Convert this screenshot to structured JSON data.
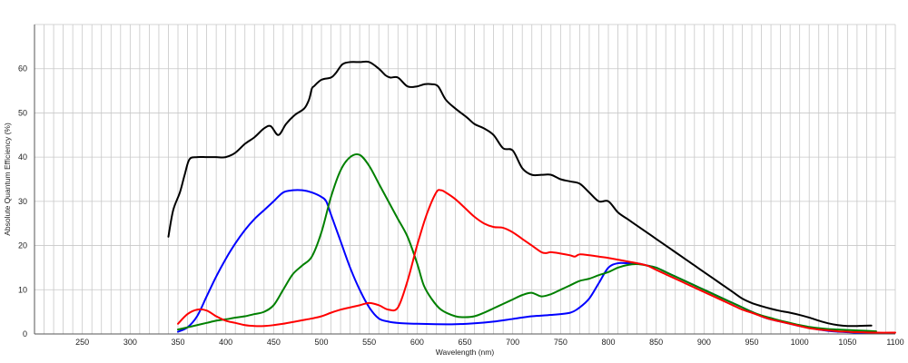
{
  "chart_data": {
    "type": "line",
    "title": "",
    "xlabel": "Wavelength (nm)",
    "ylabel": "Absolute Quantum Efficiency (%)",
    "xlim": [
      200,
      1100
    ],
    "ylim": [
      0,
      70
    ],
    "x_ticks": [
      250,
      300,
      350,
      400,
      450,
      500,
      550,
      600,
      650,
      700,
      750,
      800,
      850,
      900,
      950,
      1000,
      1050,
      1100
    ],
    "y_ticks": [
      0,
      10,
      20,
      30,
      40,
      50,
      60
    ],
    "grid": {
      "x_minor_step": 10,
      "y_step": 10
    },
    "legend": "none",
    "series": [
      {
        "color": "#000000",
        "points": [
          [
            340,
            22
          ],
          [
            345,
            28
          ],
          [
            352,
            32
          ],
          [
            357,
            36
          ],
          [
            362,
            39.5
          ],
          [
            370,
            40
          ],
          [
            380,
            40
          ],
          [
            390,
            40
          ],
          [
            400,
            40
          ],
          [
            410,
            41
          ],
          [
            420,
            43
          ],
          [
            430,
            44.5
          ],
          [
            440,
            46.5
          ],
          [
            447,
            47
          ],
          [
            455,
            45
          ],
          [
            463,
            47.5
          ],
          [
            472,
            49.5
          ],
          [
            482,
            51
          ],
          [
            487,
            53
          ],
          [
            490,
            55.5
          ],
          [
            492,
            56
          ],
          [
            500,
            57.5
          ],
          [
            510,
            58
          ],
          [
            515,
            59
          ],
          [
            522,
            61
          ],
          [
            530,
            61.5
          ],
          [
            540,
            61.5
          ],
          [
            550,
            61.5
          ],
          [
            560,
            60
          ],
          [
            567,
            58.5
          ],
          [
            572,
            58
          ],
          [
            580,
            58
          ],
          [
            590,
            56
          ],
          [
            600,
            56
          ],
          [
            608,
            56.5
          ],
          [
            615,
            56.5
          ],
          [
            622,
            56
          ],
          [
            630,
            53
          ],
          [
            640,
            51
          ],
          [
            652,
            49
          ],
          [
            660,
            47.5
          ],
          [
            670,
            46.5
          ],
          [
            680,
            45
          ],
          [
            690,
            42
          ],
          [
            700,
            41.5
          ],
          [
            710,
            37.5
          ],
          [
            720,
            36
          ],
          [
            730,
            36
          ],
          [
            740,
            36
          ],
          [
            750,
            35
          ],
          [
            760,
            34.5
          ],
          [
            770,
            34
          ],
          [
            780,
            32
          ],
          [
            790,
            30
          ],
          [
            800,
            30
          ],
          [
            810,
            27.5
          ],
          [
            820,
            26
          ],
          [
            830,
            24.5
          ],
          [
            840,
            23
          ],
          [
            850,
            21.5
          ],
          [
            860,
            20
          ],
          [
            870,
            18.5
          ],
          [
            880,
            17
          ],
          [
            890,
            15.5
          ],
          [
            900,
            14
          ],
          [
            910,
            12.5
          ],
          [
            920,
            11
          ],
          [
            930,
            9.5
          ],
          [
            940,
            8
          ],
          [
            950,
            7
          ],
          [
            960,
            6.3
          ],
          [
            970,
            5.7
          ],
          [
            980,
            5.2
          ],
          [
            990,
            4.8
          ],
          [
            1000,
            4.3
          ],
          [
            1010,
            3.7
          ],
          [
            1020,
            3
          ],
          [
            1030,
            2.4
          ],
          [
            1040,
            2
          ],
          [
            1050,
            1.8
          ],
          [
            1060,
            1.8
          ],
          [
            1075,
            1.9
          ]
        ]
      },
      {
        "color": "#0000ff",
        "points": [
          [
            350,
            0.5
          ],
          [
            360,
            1.5
          ],
          [
            370,
            4
          ],
          [
            380,
            8.5
          ],
          [
            390,
            13
          ],
          [
            400,
            17
          ],
          [
            410,
            20.5
          ],
          [
            420,
            23.5
          ],
          [
            430,
            26
          ],
          [
            440,
            28
          ],
          [
            450,
            30
          ],
          [
            460,
            32
          ],
          [
            470,
            32.5
          ],
          [
            480,
            32.5
          ],
          [
            490,
            32
          ],
          [
            500,
            31
          ],
          [
            505,
            30
          ],
          [
            510,
            27
          ],
          [
            520,
            21
          ],
          [
            530,
            15
          ],
          [
            540,
            10
          ],
          [
            550,
            6
          ],
          [
            560,
            3.5
          ],
          [
            570,
            2.8
          ],
          [
            580,
            2.5
          ],
          [
            600,
            2.3
          ],
          [
            620,
            2.2
          ],
          [
            640,
            2.2
          ],
          [
            660,
            2.4
          ],
          [
            680,
            2.8
          ],
          [
            700,
            3.4
          ],
          [
            720,
            4
          ],
          [
            740,
            4.3
          ],
          [
            760,
            4.8
          ],
          [
            770,
            6
          ],
          [
            780,
            8
          ],
          [
            790,
            11.5
          ],
          [
            800,
            15
          ],
          [
            810,
            16
          ],
          [
            820,
            16
          ],
          [
            830,
            16
          ],
          [
            840,
            15.5
          ],
          [
            850,
            15
          ],
          [
            860,
            14
          ],
          [
            870,
            13
          ],
          [
            880,
            12
          ],
          [
            890,
            11
          ],
          [
            900,
            10
          ],
          [
            910,
            9
          ],
          [
            920,
            8
          ],
          [
            930,
            7
          ],
          [
            940,
            6
          ],
          [
            950,
            5
          ],
          [
            960,
            4
          ],
          [
            970,
            3.3
          ],
          [
            980,
            2.8
          ],
          [
            990,
            2.3
          ],
          [
            1000,
            1.8
          ],
          [
            1010,
            1.4
          ],
          [
            1020,
            1
          ],
          [
            1030,
            0.7
          ],
          [
            1040,
            0.5
          ],
          [
            1050,
            0.4
          ],
          [
            1060,
            0.3
          ],
          [
            1080,
            0.3
          ]
        ]
      },
      {
        "color": "#008000",
        "points": [
          [
            350,
            1
          ],
          [
            360,
            1.5
          ],
          [
            370,
            2
          ],
          [
            380,
            2.5
          ],
          [
            390,
            3
          ],
          [
            400,
            3.3
          ],
          [
            410,
            3.7
          ],
          [
            420,
            4
          ],
          [
            430,
            4.5
          ],
          [
            440,
            5
          ],
          [
            450,
            6.5
          ],
          [
            460,
            10
          ],
          [
            470,
            13.5
          ],
          [
            480,
            15.5
          ],
          [
            490,
            17.5
          ],
          [
            500,
            23
          ],
          [
            510,
            31
          ],
          [
            520,
            37
          ],
          [
            530,
            40
          ],
          [
            540,
            40.5
          ],
          [
            550,
            38
          ],
          [
            560,
            34
          ],
          [
            570,
            30
          ],
          [
            580,
            26
          ],
          [
            590,
            22
          ],
          [
            600,
            16
          ],
          [
            607,
            11
          ],
          [
            615,
            8
          ],
          [
            625,
            5.5
          ],
          [
            640,
            4
          ],
          [
            650,
            3.8
          ],
          [
            660,
            4
          ],
          [
            670,
            4.8
          ],
          [
            680,
            5.8
          ],
          [
            690,
            6.8
          ],
          [
            700,
            7.8
          ],
          [
            710,
            8.8
          ],
          [
            720,
            9.3
          ],
          [
            730,
            8.5
          ],
          [
            740,
            9
          ],
          [
            750,
            10
          ],
          [
            760,
            11
          ],
          [
            770,
            12
          ],
          [
            780,
            12.5
          ],
          [
            790,
            13.3
          ],
          [
            800,
            14
          ],
          [
            810,
            15
          ],
          [
            820,
            15.6
          ],
          [
            830,
            15.8
          ],
          [
            840,
            15.5
          ],
          [
            850,
            15
          ],
          [
            860,
            14
          ],
          [
            870,
            13
          ],
          [
            880,
            12
          ],
          [
            890,
            11
          ],
          [
            900,
            10
          ],
          [
            910,
            9
          ],
          [
            920,
            8
          ],
          [
            930,
            7
          ],
          [
            940,
            6
          ],
          [
            950,
            5
          ],
          [
            960,
            4.2
          ],
          [
            970,
            3.6
          ],
          [
            980,
            3
          ],
          [
            990,
            2.5
          ],
          [
            1000,
            2
          ],
          [
            1010,
            1.6
          ],
          [
            1020,
            1.3
          ],
          [
            1030,
            1.1
          ],
          [
            1040,
            1
          ],
          [
            1050,
            0.9
          ],
          [
            1060,
            0.8
          ],
          [
            1080,
            0.6
          ]
        ]
      },
      {
        "color": "#ff0000",
        "points": [
          [
            350,
            2.3
          ],
          [
            360,
            4.5
          ],
          [
            370,
            5.5
          ],
          [
            380,
            5.3
          ],
          [
            390,
            4
          ],
          [
            400,
            3
          ],
          [
            410,
            2.5
          ],
          [
            420,
            2
          ],
          [
            430,
            1.8
          ],
          [
            440,
            1.8
          ],
          [
            450,
            2
          ],
          [
            460,
            2.3
          ],
          [
            470,
            2.7
          ],
          [
            480,
            3.1
          ],
          [
            490,
            3.5
          ],
          [
            500,
            4
          ],
          [
            510,
            4.8
          ],
          [
            520,
            5.5
          ],
          [
            530,
            6
          ],
          [
            540,
            6.5
          ],
          [
            550,
            7
          ],
          [
            560,
            6.5
          ],
          [
            570,
            5.5
          ],
          [
            580,
            6
          ],
          [
            590,
            12
          ],
          [
            600,
            20
          ],
          [
            610,
            27
          ],
          [
            620,
            32
          ],
          [
            625,
            32.5
          ],
          [
            630,
            32
          ],
          [
            640,
            30.5
          ],
          [
            650,
            28.5
          ],
          [
            660,
            26.5
          ],
          [
            670,
            25
          ],
          [
            680,
            24.2
          ],
          [
            690,
            24
          ],
          [
            700,
            23
          ],
          [
            710,
            21.5
          ],
          [
            720,
            20
          ],
          [
            730,
            18.5
          ],
          [
            735,
            18.3
          ],
          [
            740,
            18.5
          ],
          [
            750,
            18.2
          ],
          [
            760,
            17.8
          ],
          [
            765,
            17.5
          ],
          [
            770,
            18
          ],
          [
            780,
            17.8
          ],
          [
            790,
            17.5
          ],
          [
            800,
            17.2
          ],
          [
            810,
            16.8
          ],
          [
            820,
            16.4
          ],
          [
            830,
            16
          ],
          [
            840,
            15.5
          ],
          [
            850,
            14.5
          ],
          [
            860,
            13.5
          ],
          [
            870,
            12.5
          ],
          [
            880,
            11.5
          ],
          [
            890,
            10.5
          ],
          [
            900,
            9.5
          ],
          [
            910,
            8.5
          ],
          [
            920,
            7.5
          ],
          [
            930,
            6.5
          ],
          [
            940,
            5.5
          ],
          [
            950,
            4.8
          ],
          [
            960,
            4
          ],
          [
            970,
            3.3
          ],
          [
            980,
            2.8
          ],
          [
            990,
            2.3
          ],
          [
            1000,
            1.8
          ],
          [
            1010,
            1.3
          ],
          [
            1020,
            1
          ],
          [
            1030,
            0.8
          ],
          [
            1040,
            0.6
          ],
          [
            1050,
            0.5
          ],
          [
            1060,
            0.4
          ],
          [
            1080,
            0.3
          ],
          [
            1100,
            0.3
          ]
        ]
      }
    ]
  }
}
